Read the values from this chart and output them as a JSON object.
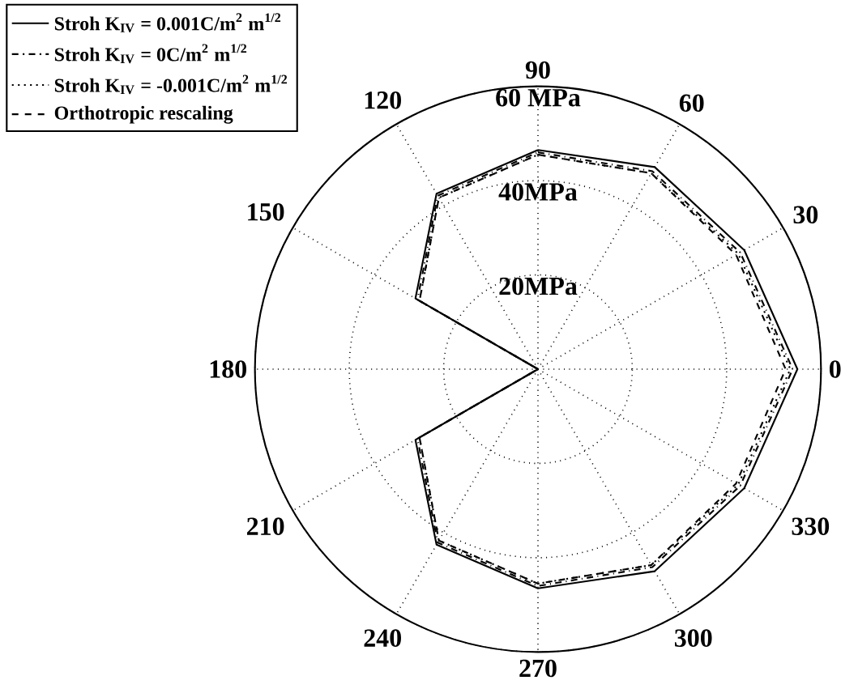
{
  "chart_data": {
    "type": "radar",
    "categories": [
      "90",
      "60",
      "30",
      "0",
      "330",
      "300",
      "270",
      "240",
      "210",
      "180",
      "150",
      "120"
    ],
    "ylim": [
      0,
      60
    ],
    "yticks": [
      {
        "value": 20,
        "label": "20MPa"
      },
      {
        "value": 40,
        "label": "40MPa"
      },
      {
        "value": 60,
        "label": "60 MPa"
      }
    ],
    "grid": true,
    "legend": "top left",
    "marker": "none",
    "series": [
      {
        "name": "Stroh K$_{IV}$ = 0.001C/m$^{2}$ m$^{1/2}$",
        "color": "#000000",
        "line_style": "solid",
        "values": [
          46.5,
          49.5,
          50.5,
          55,
          50.5,
          49.5,
          46.5,
          43,
          30,
          0,
          30,
          43
        ]
      },
      {
        "name": "Stroh K$_{IV}$ = 0C/m$^{2}$ m$^{1/2}$",
        "color": "#000000",
        "line_style": "dashdotted",
        "values": [
          46,
          48.5,
          49.5,
          54,
          49.5,
          48.5,
          46,
          42.5,
          29.5,
          0,
          29.5,
          42.5
        ]
      },
      {
        "name": "Stroh K$_{IV}$ = -0.001C/m$^{2}$ m$^{1/2}$",
        "color": "#000000",
        "line_style": "dotted",
        "values": [
          45.5,
          48,
          49,
          53.5,
          49,
          48,
          45.5,
          42,
          29,
          0,
          29,
          42
        ]
      },
      {
        "name": "Orthotropic rescaling",
        "color": "#000000",
        "line_style": "dashed",
        "values": [
          45.5,
          48,
          48.5,
          52.5,
          48.5,
          48,
          45.5,
          42,
          29,
          0,
          29,
          42
        ]
      }
    ]
  }
}
